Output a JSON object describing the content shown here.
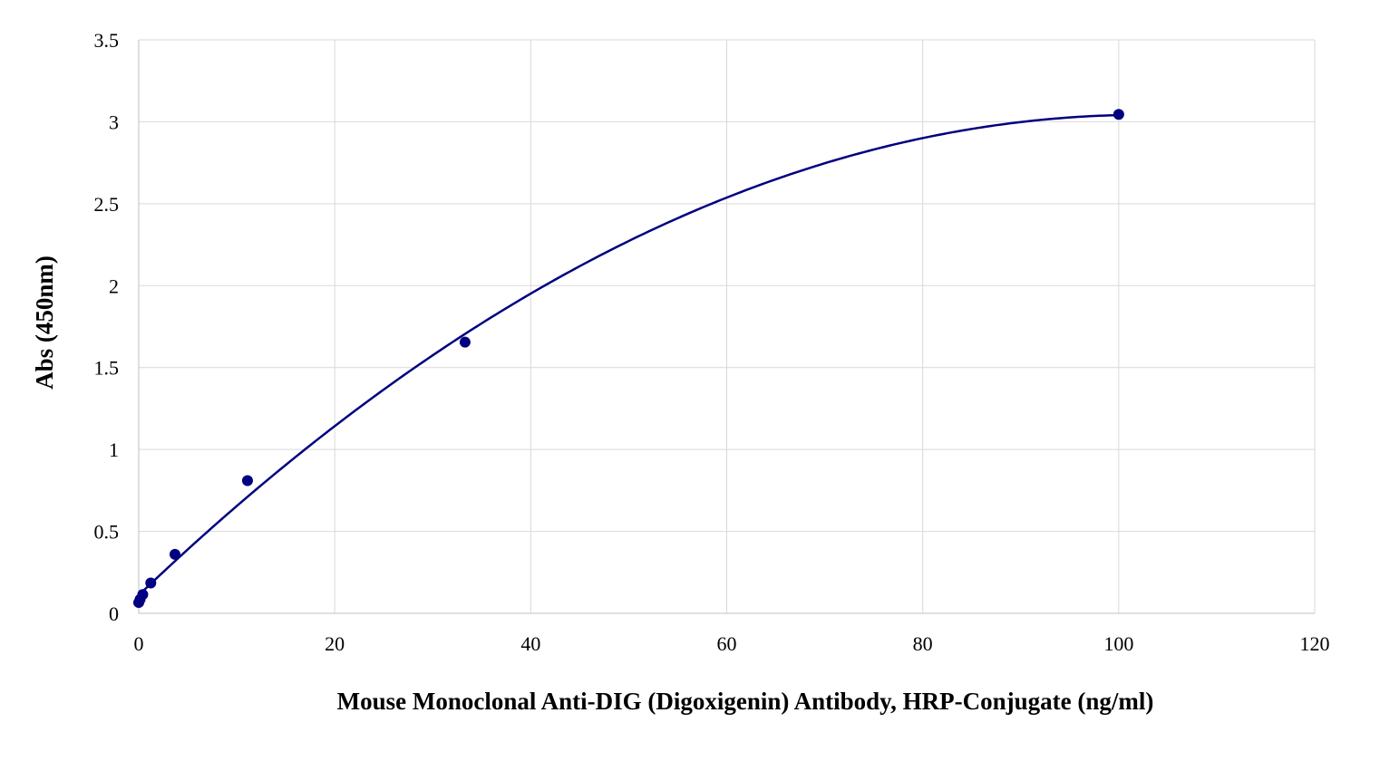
{
  "chart_data": {
    "type": "scatter",
    "title": "",
    "xlabel": "Mouse Monoclonal Anti-DIG (Digoxigenin) Antibody, HRP-Conjugate (ng/ml)",
    "ylabel": "Abs (450nm)",
    "xlim": [
      0,
      120
    ],
    "ylim": [
      0,
      3.5
    ],
    "x_ticks": [
      "0",
      "20",
      "40",
      "60",
      "80",
      "100",
      "120"
    ],
    "y_ticks": [
      "0",
      "0.5",
      "1",
      "1.5",
      "2",
      "2.5",
      "3",
      "3.5"
    ],
    "grid": true,
    "legend": "none",
    "series": [
      {
        "x": [
          0.0,
          0.14,
          0.41,
          1.23,
          3.7,
          11.1,
          33.3,
          100
        ],
        "y": [
          0.066,
          0.085,
          0.115,
          0.185,
          0.36,
          0.81,
          1.655,
          3.045
        ],
        "color": "#000080",
        "marker": "circle",
        "trendline": "polynomial"
      }
    ]
  }
}
